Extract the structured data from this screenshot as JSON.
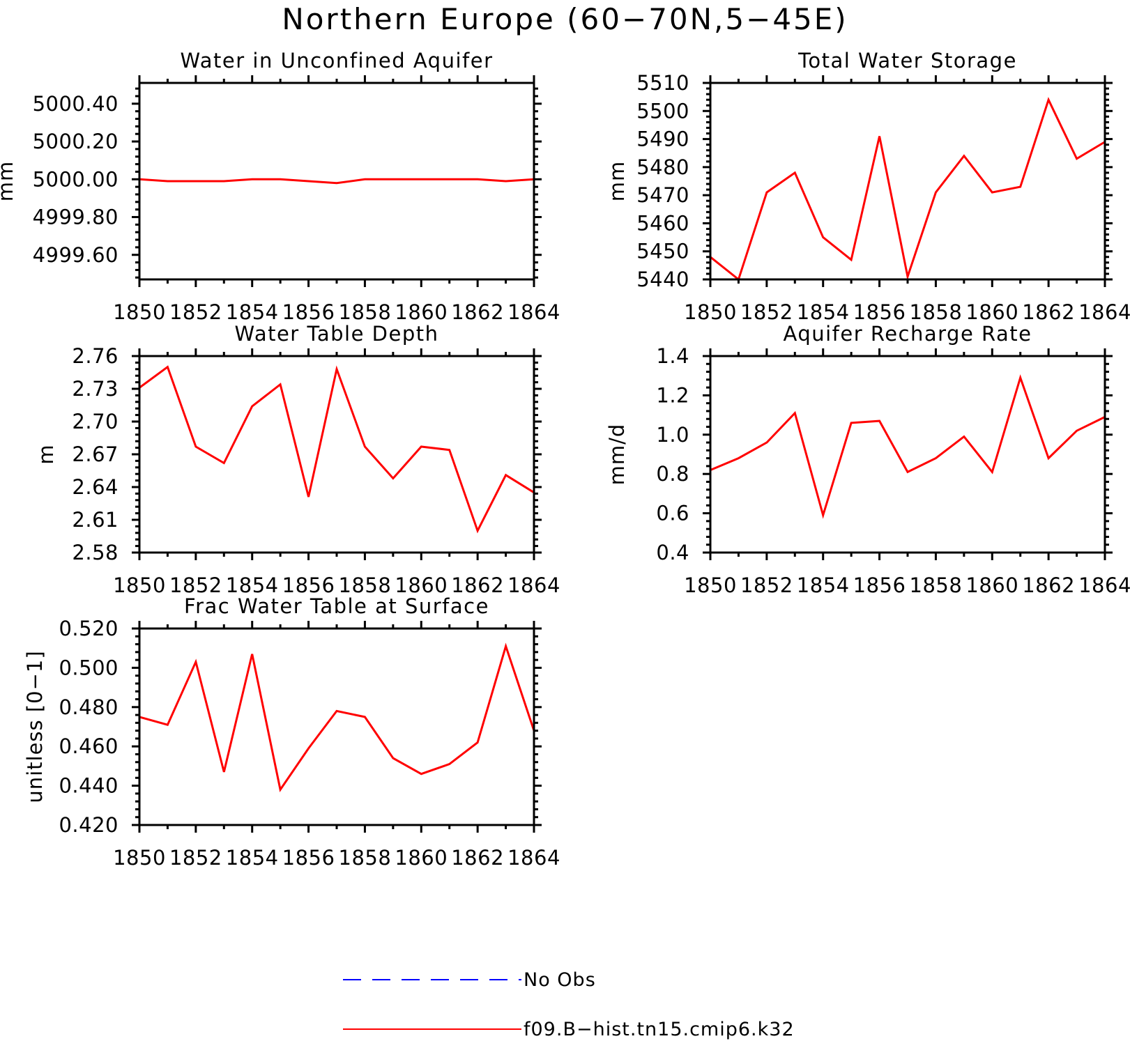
{
  "title": "Northern Europe (60−70N,5−45E)",
  "colors": {
    "model": "#ff0000",
    "obs": "#0000ff",
    "axis": "#000000"
  },
  "legend": {
    "obs_label": "No Obs",
    "model_label": "f09.B−hist.tn15.cmip6.k32"
  },
  "chart_data": [
    {
      "id": "aquifer",
      "type": "line",
      "title": "Water in Unconfined Aquifer",
      "xlabel": "",
      "ylabel": "mm",
      "x": [
        1850,
        1851,
        1852,
        1853,
        1854,
        1855,
        1856,
        1857,
        1858,
        1859,
        1860,
        1861,
        1862,
        1863,
        1864
      ],
      "xlim": [
        1850,
        1864
      ],
      "xticks": [
        1850,
        1852,
        1854,
        1856,
        1858,
        1860,
        1862,
        1864
      ],
      "xtick_labels": [
        "1850",
        "1852",
        "1854",
        "1856",
        "1858",
        "1860",
        "1862",
        "1864"
      ],
      "ylim": [
        4999.47,
        5000.51
      ],
      "yticks": [
        4999.6,
        4999.8,
        5000.0,
        5000.2,
        5000.4
      ],
      "ytick_labels": [
        "4999.60",
        "4999.80",
        "5000.00",
        "5000.20",
        "5000.40"
      ],
      "series": [
        {
          "name": "f09.B−hist.tn15.cmip6.k32",
          "values": [
            5000.0,
            4999.99,
            4999.99,
            4999.99,
            5000.0,
            5000.0,
            4999.99,
            4999.98,
            5000.0,
            5000.0,
            5000.0,
            5000.0,
            5000.0,
            4999.99,
            5000.0
          ]
        }
      ]
    },
    {
      "id": "storage",
      "type": "line",
      "title": "Total Water Storage",
      "xlabel": "",
      "ylabel": "mm",
      "x": [
        1850,
        1851,
        1852,
        1853,
        1854,
        1855,
        1856,
        1857,
        1858,
        1859,
        1860,
        1861,
        1862,
        1863,
        1864
      ],
      "xlim": [
        1850,
        1864
      ],
      "xticks": [
        1850,
        1852,
        1854,
        1856,
        1858,
        1860,
        1862,
        1864
      ],
      "xtick_labels": [
        "1850",
        "1852",
        "1854",
        "1856",
        "1858",
        "1860",
        "1862",
        "1864"
      ],
      "ylim": [
        5440,
        5510
      ],
      "yticks": [
        5440,
        5450,
        5460,
        5470,
        5480,
        5490,
        5500,
        5510
      ],
      "ytick_labels": [
        "5440",
        "5450",
        "5460",
        "5470",
        "5480",
        "5490",
        "5500",
        "5510"
      ],
      "series": [
        {
          "name": "f09.B−hist.tn15.cmip6.k32",
          "values": [
            5448,
            5440,
            5471,
            5478,
            5455,
            5447,
            5491,
            5441,
            5471,
            5484,
            5471,
            5473,
            5504,
            5483,
            5489
          ]
        }
      ]
    },
    {
      "id": "depth",
      "type": "line",
      "title": "Water Table Depth",
      "xlabel": "",
      "ylabel": "m",
      "x": [
        1850,
        1851,
        1852,
        1853,
        1854,
        1855,
        1856,
        1857,
        1858,
        1859,
        1860,
        1861,
        1862,
        1863,
        1864
      ],
      "xlim": [
        1850,
        1864
      ],
      "xticks": [
        1850,
        1852,
        1854,
        1856,
        1858,
        1860,
        1862,
        1864
      ],
      "xtick_labels": [
        "1850",
        "1852",
        "1854",
        "1856",
        "1858",
        "1860",
        "1862",
        "1864"
      ],
      "ylim": [
        2.58,
        2.76
      ],
      "yticks": [
        2.58,
        2.61,
        2.64,
        2.67,
        2.7,
        2.73,
        2.76
      ],
      "ytick_labels": [
        "2.58",
        "2.61",
        "2.64",
        "2.67",
        "2.70",
        "2.73",
        "2.76"
      ],
      "series": [
        {
          "name": "f09.B−hist.tn15.cmip6.k32",
          "values": [
            2.731,
            2.75,
            2.677,
            2.662,
            2.714,
            2.734,
            2.631,
            2.748,
            2.677,
            2.648,
            2.677,
            2.674,
            2.6,
            2.651,
            2.635
          ]
        }
      ]
    },
    {
      "id": "recharge",
      "type": "line",
      "title": "Aquifer Recharge Rate",
      "xlabel": "",
      "ylabel": "mm/d",
      "x": [
        1850,
        1851,
        1852,
        1853,
        1854,
        1855,
        1856,
        1857,
        1858,
        1859,
        1860,
        1861,
        1862,
        1863,
        1864
      ],
      "xlim": [
        1850,
        1864
      ],
      "xticks": [
        1850,
        1852,
        1854,
        1856,
        1858,
        1860,
        1862,
        1864
      ],
      "xtick_labels": [
        "1850",
        "1852",
        "1854",
        "1856",
        "1858",
        "1860",
        "1862",
        "1864"
      ],
      "ylim": [
        0.4,
        1.4
      ],
      "yticks": [
        0.4,
        0.6,
        0.8,
        1.0,
        1.2,
        1.4
      ],
      "ytick_labels": [
        "0.4",
        "0.6",
        "0.8",
        "1.0",
        "1.2",
        "1.4"
      ],
      "series": [
        {
          "name": "f09.B−hist.tn15.cmip6.k32",
          "values": [
            0.82,
            0.88,
            0.96,
            1.11,
            0.59,
            1.06,
            1.07,
            0.81,
            0.88,
            0.99,
            0.81,
            1.29,
            0.88,
            1.02,
            1.09
          ]
        }
      ]
    },
    {
      "id": "frac",
      "type": "line",
      "title": "Frac Water Table at Surface",
      "xlabel": "",
      "ylabel": "unitless [0−1]",
      "x": [
        1850,
        1851,
        1852,
        1853,
        1854,
        1855,
        1856,
        1857,
        1858,
        1859,
        1860,
        1861,
        1862,
        1863,
        1864
      ],
      "xlim": [
        1850,
        1864
      ],
      "xticks": [
        1850,
        1852,
        1854,
        1856,
        1858,
        1860,
        1862,
        1864
      ],
      "xtick_labels": [
        "1850",
        "1852",
        "1854",
        "1856",
        "1858",
        "1860",
        "1862",
        "1864"
      ],
      "ylim": [
        0.42,
        0.52
      ],
      "yticks": [
        0.42,
        0.44,
        0.46,
        0.48,
        0.5,
        0.52
      ],
      "ytick_labels": [
        "0.420",
        "0.440",
        "0.460",
        "0.480",
        "0.500",
        "0.520"
      ],
      "series": [
        {
          "name": "f09.B−hist.tn15.cmip6.k32",
          "values": [
            0.475,
            0.471,
            0.503,
            0.447,
            0.507,
            0.438,
            0.459,
            0.478,
            0.475,
            0.454,
            0.446,
            0.451,
            0.462,
            0.511,
            0.468
          ]
        }
      ]
    }
  ]
}
